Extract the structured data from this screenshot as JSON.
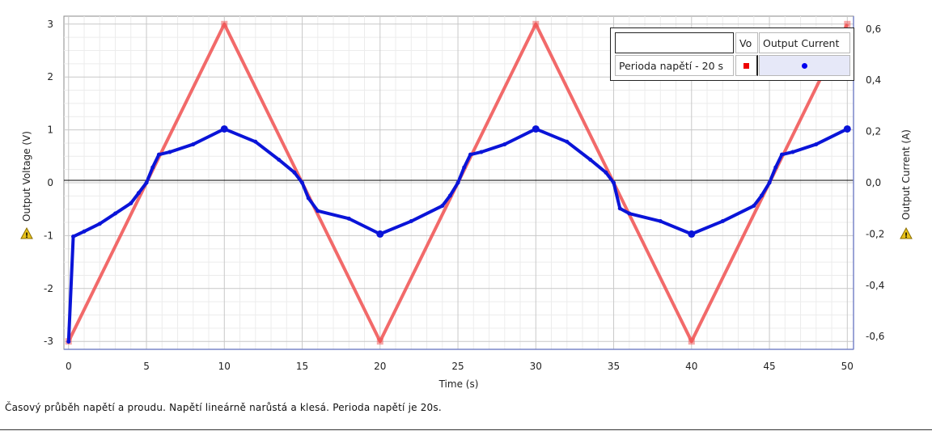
{
  "chart_data": {
    "type": "line",
    "caption": "Časový průběh napětí a proudu. Napětí lineárně narůstá a klesá. Perioda napětí je 20s.",
    "xlabel": "Time (s)",
    "ylabel_left": "Output Voltage (V)",
    "ylabel_right": "Output Current (A)",
    "xlim": [
      -0.3,
      50.4
    ],
    "ylim_left": [
      -3.15,
      3.15
    ],
    "ylim_right": [
      -0.65,
      0.65
    ],
    "x_ticks": [
      "0",
      "5",
      "10",
      "15",
      "20",
      "25",
      "30",
      "35",
      "40",
      "45",
      "50"
    ],
    "y_left_ticks": [
      "-3",
      "-2",
      "-1",
      "0",
      "1",
      "2",
      "3"
    ],
    "y_right_ticks": [
      "-0,6",
      "-0,4",
      "-0,2",
      "0,0",
      "0,2",
      "0,4",
      "0,6"
    ],
    "grid": true,
    "legend": {
      "position": "top-right",
      "headers": [
        "",
        "Vo",
        "Output Current"
      ],
      "row_label": "Perioda napětí - 20 s"
    },
    "series": [
      {
        "name": "Vo",
        "axis": "left",
        "color": "#f05050",
        "x": [
          0,
          10,
          20,
          30,
          40,
          50
        ],
        "y": [
          -3,
          3,
          -3,
          3,
          -3,
          3
        ]
      },
      {
        "name": "Output Current",
        "axis": "right",
        "color": "#0a14d8",
        "x": [
          0,
          0.3,
          1,
          2,
          3,
          4,
          4.5,
          5,
          5.4,
          5.8,
          6.5,
          8,
          10,
          12,
          13.5,
          14.5,
          15,
          15.4,
          16,
          18,
          20,
          22,
          24,
          24.5,
          25,
          25.4,
          25.8,
          26.5,
          28,
          30,
          32,
          33.5,
          34.5,
          35,
          35.4,
          36,
          38,
          40,
          42,
          44,
          44.5,
          45,
          45.4,
          45.8,
          46.5,
          48,
          50
        ],
        "y": [
          -0.62,
          -0.21,
          -0.19,
          -0.16,
          -0.12,
          -0.08,
          -0.04,
          0.0,
          0.06,
          0.11,
          0.12,
          0.15,
          0.21,
          0.16,
          0.09,
          0.04,
          0.0,
          -0.06,
          -0.11,
          -0.14,
          -0.2,
          -0.15,
          -0.09,
          -0.05,
          0.0,
          0.06,
          0.11,
          0.12,
          0.15,
          0.21,
          0.16,
          0.09,
          0.04,
          0.0,
          -0.1,
          -0.12,
          -0.15,
          -0.2,
          -0.15,
          -0.09,
          -0.05,
          0.0,
          0.06,
          0.11,
          0.12,
          0.15,
          0.21
        ]
      }
    ]
  }
}
